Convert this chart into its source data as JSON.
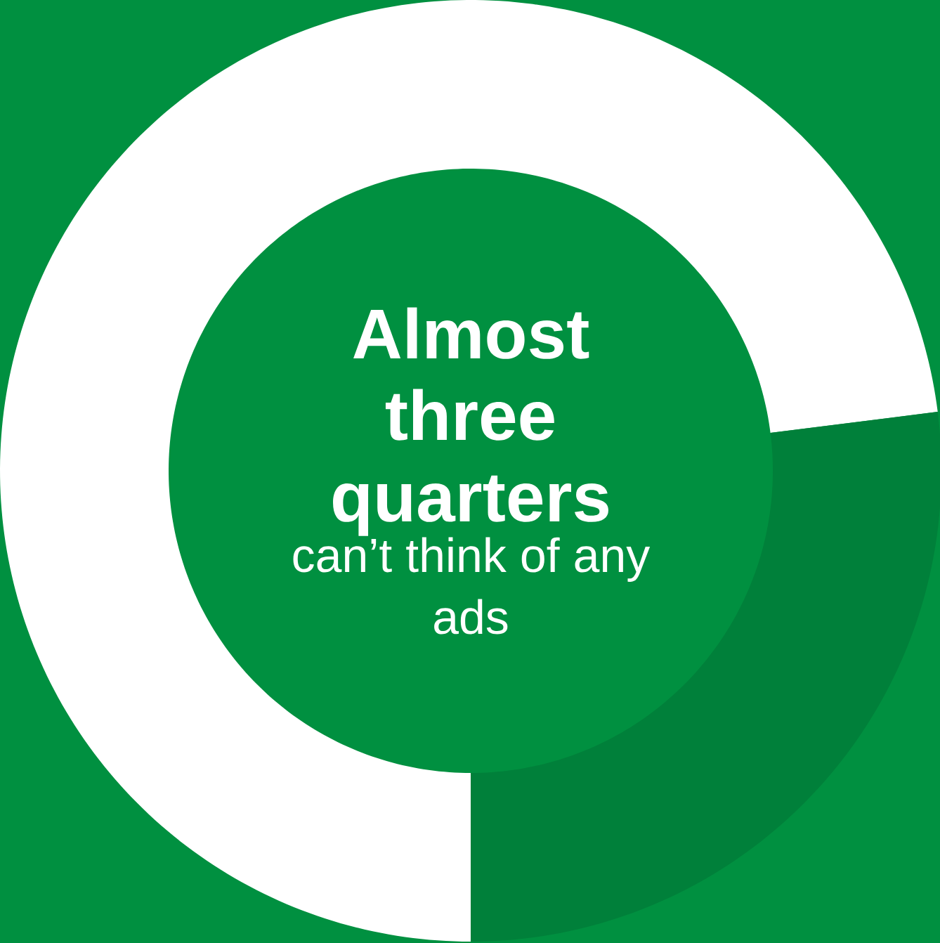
{
  "chart_data": {
    "type": "donut",
    "title": "Almost three quarters",
    "subtitle": "can’t think of any ads",
    "categories": [
      null,
      null
    ],
    "values": [
      73,
      27
    ],
    "colors": [
      "#ffffff",
      "#00803a"
    ]
  }
}
